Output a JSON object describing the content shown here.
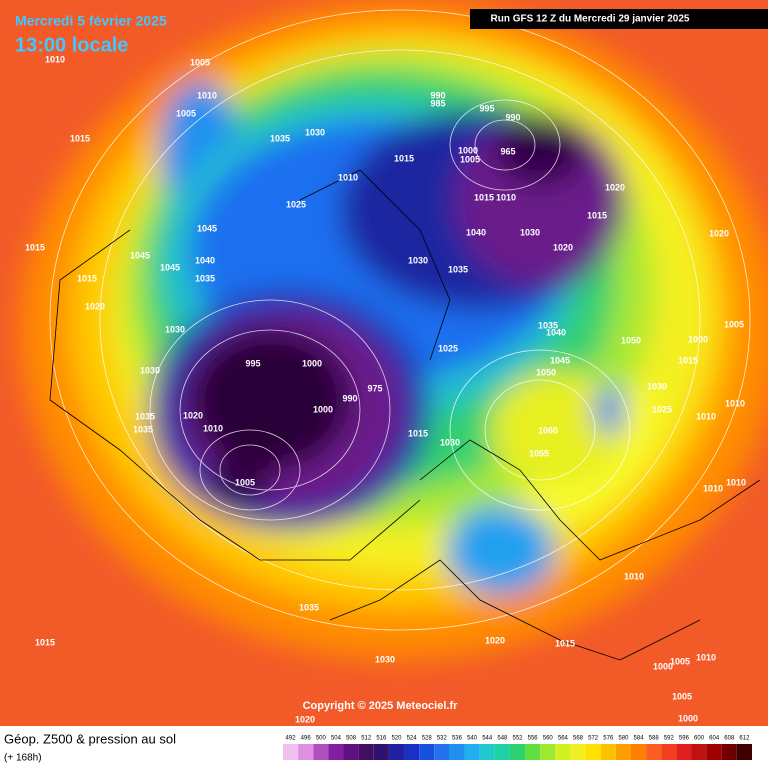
{
  "header": {
    "date": "Mercredi 5 février 2025",
    "time": "13:00 locale",
    "run": "Run GFS 12 Z du Mercredi 29 janvier 2025"
  },
  "copyright": "Copyright © 2025 Meteociel.fr",
  "footer": {
    "title": "Géop. Z500 & pression au sol",
    "lead": "(+ 168h)"
  },
  "legend": [
    492,
    496,
    500,
    504,
    508,
    512,
    516,
    520,
    524,
    528,
    532,
    536,
    540,
    544,
    548,
    552,
    556,
    560,
    564,
    568,
    572,
    576,
    580,
    584,
    588,
    592,
    596,
    600,
    604,
    608,
    612
  ],
  "isobar_labels": [
    "1010",
    "1005",
    "1010",
    "1005",
    "1015",
    "1035",
    "1030",
    "990",
    "985",
    "995",
    "990",
    "1015",
    "1000",
    "1005",
    "965",
    "1010",
    "1025",
    "1015",
    "1010",
    "1020",
    "1015",
    "1045",
    "1040",
    "1030",
    "1020",
    "1020",
    "1015",
    "1045",
    "1045",
    "1040",
    "1030",
    "1035",
    "1035",
    "1015",
    "1020",
    "1030",
    "1035",
    "1040",
    "1050",
    "1000",
    "1005",
    "1025",
    "995",
    "1000",
    "1045",
    "1050",
    "1015",
    "1030",
    "975",
    "990",
    "1030",
    "1025",
    "1010",
    "1010",
    "1035",
    "1035",
    "1020",
    "1010",
    "1000",
    "1015",
    "1030",
    "1060",
    "1055",
    "1010",
    "1010",
    "1005",
    "1035",
    "1010",
    "1020",
    "1015",
    "1030",
    "1015",
    "1010",
    "1005",
    "1000",
    "1005",
    "1000",
    "1020"
  ]
}
